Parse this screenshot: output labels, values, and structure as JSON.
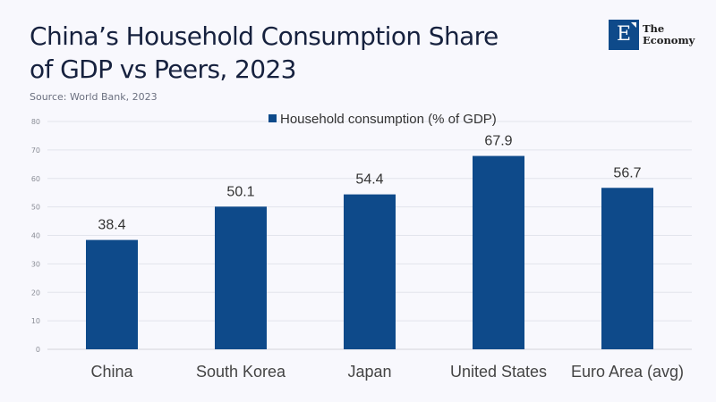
{
  "header": {
    "title_line1": "China’s Household Consumption Share",
    "title_line2": "of GDP vs Peers, 2023",
    "source": "Source: World Bank, 2023"
  },
  "logo": {
    "letter": "E",
    "line1": "The",
    "line2": "Economy",
    "brand_color": "#0e4a8a"
  },
  "chart_data": {
    "type": "bar",
    "title": "China’s Household Consumption Share of GDP vs Peers, 2023",
    "subtitle": "Source: World Bank, 2023",
    "categories": [
      "China",
      "South Korea",
      "Japan",
      "United States",
      "Euro Area (avg)"
    ],
    "series": [
      {
        "name": "Household consumption (% of GDP)",
        "values": [
          38.4,
          50.1,
          54.4,
          67.9,
          56.7
        ],
        "color": "#0e4a8a"
      }
    ],
    "xlabel": "",
    "ylabel": "",
    "ylim": [
      0,
      80
    ],
    "yticks": [
      0,
      10,
      20,
      30,
      40,
      50,
      60,
      70,
      80
    ],
    "grid": true,
    "legend": "top-center",
    "data_labels": true
  }
}
